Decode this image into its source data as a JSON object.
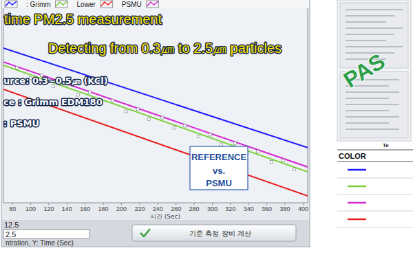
{
  "chart_data": {
    "type": "line",
    "title": "time PM2.5 measurement",
    "subtitle": "Detecting from 0.3㎛ to 2.5㎛ particles",
    "annotations": [
      "urce: 0.3~0.5㎛ (KCl)",
      "ce : Grimm EDM180",
      ": PSMU",
      "REFERENCE",
      "vs.",
      "PSMU"
    ],
    "x_label": "시간 (Sec)",
    "xlim": [
      70,
      405
    ],
    "xticks": [
      80,
      100,
      120,
      140,
      160,
      180,
      200,
      220,
      240,
      260,
      280,
      300,
      320,
      340,
      360,
      380,
      400
    ],
    "ylim": [
      0,
      100
    ],
    "tick_labels": "x",
    "series": [
      {
        "name": null,
        "color": "#1a1aff",
        "x": [
          70,
          405
        ],
        "values": [
          79.5,
          28.3
        ]
      },
      {
        "name": ": Grimm",
        "color": "#7ccf3a",
        "x": [
          70,
          405
        ],
        "values": [
          70.7,
          15.9
        ]
      },
      {
        "name": "Lower",
        "color": "#e81e1e",
        "x": [
          70,
          405
        ],
        "values": [
          58.3,
          3.5
        ]
      },
      {
        "name": "PSMU",
        "color": "#d62ad0",
        "x": [
          70,
          405
        ],
        "values": [
          72.4,
          18.4
        ]
      },
      {
        "name": null,
        "type": "scatter",
        "marker": "square",
        "color": "#ffffff",
        "x": [
          85,
          100,
          112,
          125,
          140,
          152,
          165,
          178,
          190,
          205,
          218,
          230,
          245,
          258,
          270,
          285,
          298,
          310,
          325,
          338,
          350,
          365,
          378,
          390
        ],
        "values": [
          69.5,
          64.0,
          65.5,
          60.0,
          60.8,
          55.5,
          56.9,
          51.2,
          52.6,
          47.0,
          48.1,
          42.9,
          43.8,
          38.5,
          39.6,
          34.0,
          35.0,
          30.0,
          30.5,
          25.3,
          26.4,
          21.0,
          21.8,
          17.2
        ]
      }
    ]
  },
  "panel": {
    "label": "12.5",
    "input": "2.5",
    "caption": "ntration, Y: Time (Sec)",
    "button": "기준 측정 장비 계산"
  },
  "certificate": {
    "stamp": "PAS",
    "test_label": "Te",
    "table": {
      "header": "COLOR",
      "rows": [
        {
          "color": "#1a1aff"
        },
        {
          "color": "#7ccf3a"
        },
        {
          "color": "#d62ad0"
        },
        {
          "color": "#e81e1e"
        }
      ]
    }
  }
}
